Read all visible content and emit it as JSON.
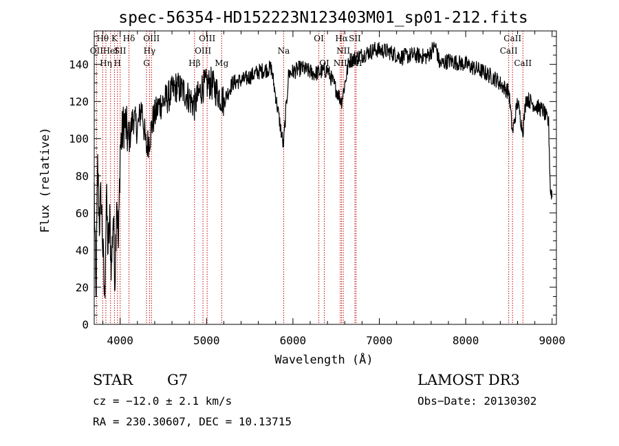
{
  "chart_data": {
    "type": "line",
    "title": "spec-56354-HD152223N123403M01_sp01-212.fits",
    "xlabel": "Wavelength (Å)",
    "ylabel": "Flux (relative)",
    "xlim": [
      3700,
      9050
    ],
    "ylim": [
      0,
      158
    ],
    "xticks": [
      4000,
      5000,
      6000,
      7000,
      8000,
      9000
    ],
    "yticks": [
      0,
      20,
      40,
      60,
      80,
      100,
      120,
      140
    ],
    "series": [
      {
        "name": "flux",
        "x": [
          3700,
          3720,
          3740,
          3760,
          3780,
          3800,
          3820,
          3840,
          3860,
          3880,
          3900,
          3920,
          3940,
          3960,
          3980,
          4000,
          4050,
          4100,
          4150,
          4200,
          4250,
          4300,
          4340,
          4380,
          4450,
          4550,
          4650,
          4750,
          4860,
          4950,
          5050,
          5200,
          5300,
          5450,
          5600,
          5750,
          5890,
          5950,
          6100,
          6250,
          6400,
          6563,
          6650,
          6800,
          6950,
          7100,
          7250,
          7400,
          7550,
          7650,
          7700,
          7800,
          8000,
          8200,
          8350,
          8500,
          8542,
          8600,
          8662,
          8700,
          8800,
          8900,
          8960,
          8980,
          9000
        ],
        "values": [
          72,
          10,
          85,
          55,
          70,
          40,
          12,
          68,
          40,
          55,
          30,
          60,
          25,
          72,
          40,
          95,
          110,
          98,
          112,
          105,
          118,
          95,
          100,
          110,
          118,
          122,
          128,
          125,
          118,
          128,
          130,
          120,
          130,
          132,
          136,
          138,
          96,
          135,
          138,
          135,
          137,
          120,
          142,
          145,
          148,
          147,
          144,
          145,
          144,
          150,
          140,
          142,
          140,
          136,
          132,
          125,
          103,
          120,
          104,
          122,
          118,
          115,
          108,
          72,
          70
        ]
      }
    ],
    "spectral_lines": [
      {
        "label": "Hθ",
        "wavelength": 3798,
        "row": 0
      },
      {
        "label": "OII",
        "wavelength": 3727,
        "row": 1
      },
      {
        "label": "Hη",
        "wavelength": 3835,
        "row": 2
      },
      {
        "label": "HeI",
        "wavelength": 3889,
        "row": 1
      },
      {
        "label": "K",
        "wavelength": 3934,
        "row": 0
      },
      {
        "label": "SII",
        "wavelength": 4000,
        "row": 1
      },
      {
        "label": "H",
        "wavelength": 3969,
        "row": 2
      },
      {
        "label": "Hδ",
        "wavelength": 4102,
        "row": 0
      },
      {
        "label": "OIII",
        "wavelength": 4363,
        "row": 0
      },
      {
        "label": "Hγ",
        "wavelength": 4340,
        "row": 1
      },
      {
        "label": "G",
        "wavelength": 4305,
        "row": 2
      },
      {
        "label": "OIII",
        "wavelength": 5007,
        "row": 0
      },
      {
        "label": "OIII",
        "wavelength": 4959,
        "row": 1
      },
      {
        "label": "Hβ",
        "wavelength": 4861,
        "row": 2
      },
      {
        "label": "Mg",
        "wavelength": 5175,
        "row": 2
      },
      {
        "label": "Na",
        "wavelength": 5893,
        "row": 1
      },
      {
        "label": "OI",
        "wavelength": 6300,
        "row": 0
      },
      {
        "label": "OI",
        "wavelength": 6363,
        "row": 2
      },
      {
        "label": "Hα",
        "wavelength": 6563,
        "row": 0
      },
      {
        "label": "NII",
        "wavelength": 6583,
        "row": 1
      },
      {
        "label": "NII",
        "wavelength": 6548,
        "row": 2
      },
      {
        "label": "SII",
        "wavelength": 6717,
        "row": 0
      },
      {
        "label": "SII",
        "wavelength": 6731,
        "row": 2
      },
      {
        "label": "CaII",
        "wavelength": 8542,
        "row": 0
      },
      {
        "label": "CaII",
        "wavelength": 8498,
        "row": 1
      },
      {
        "label": "CaII",
        "wavelength": 8662,
        "row": 2
      }
    ]
  },
  "info": {
    "class": "STAR",
    "subclass": "G7",
    "survey": "LAMOST DR3",
    "cz": "cz = −12.0 ± 2.1 km/s",
    "obs_date": "Obs−Date: 20130302",
    "radec": "RA = 230.30607, DEC =  10.13715"
  },
  "colors": {
    "spectrum": "#000000",
    "line_marker": "#c00000",
    "axis": "#000000",
    "background": "#ffffff"
  }
}
